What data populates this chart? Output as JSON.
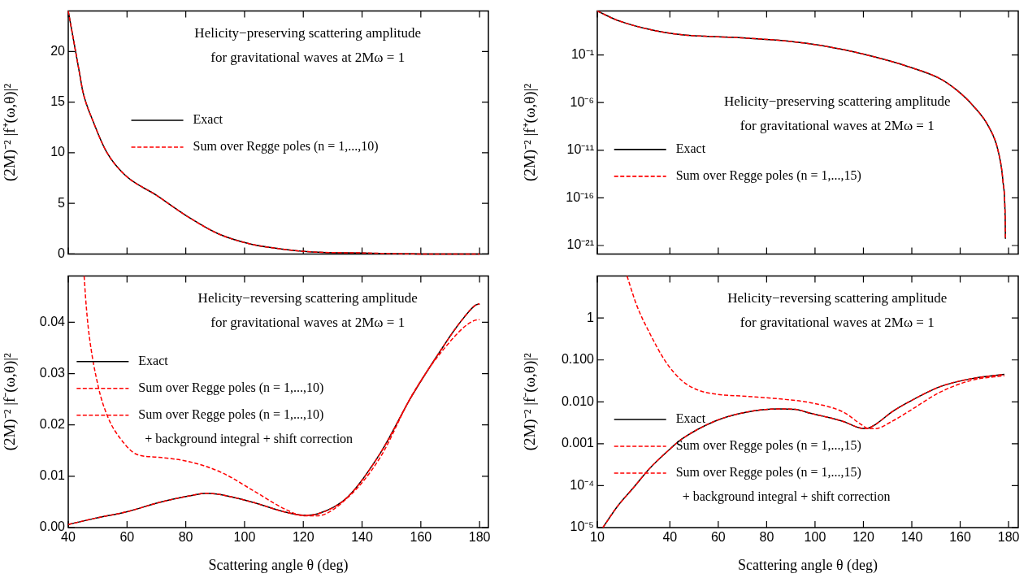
{
  "chart_data": [
    {
      "type": "line",
      "title": "Helicity−preserving scattering amplitude",
      "subtitle": "for gravitational waves at 2Mω = 1",
      "ylabel": "(2M)⁻² |f⁺(ω,θ)|²",
      "xlim": [
        40,
        183
      ],
      "xticks": [
        40,
        60,
        80,
        100,
        120,
        140,
        160,
        180
      ],
      "ylim": [
        0,
        24
      ],
      "yticks": [
        0,
        5,
        10,
        15,
        20
      ],
      "tick_labels": "y",
      "legend": "center",
      "x": [
        40,
        42,
        44,
        45,
        48.6,
        53,
        59.3,
        70,
        80.6,
        91,
        101.8,
        112.3,
        123,
        140,
        160,
        180
      ],
      "series": [
        {
          "name": "Exact",
          "color": "#000000",
          "line_style": "solid",
          "values": [
            24,
            20.8,
            17.6,
            16,
            13,
            10.1,
            7.8,
            5.8,
            3.7,
            2,
            1,
            0.5,
            0.2,
            0.1,
            0,
            0
          ]
        },
        {
          "name": "Sum over Regge poles (n = 1,...,10)",
          "color": "#ff0000",
          "line_style": "dashed",
          "values": [
            24,
            20.8,
            17.6,
            16,
            13,
            10.1,
            7.8,
            5.8,
            3.7,
            2,
            1,
            0.5,
            0.2,
            0.1,
            0,
            0
          ]
        }
      ]
    },
    {
      "type": "line",
      "title": "Helicity−preserving scattering amplitude",
      "subtitle": "for gravitational waves at 2Mω = 1",
      "ylabel": "(2M)⁻² |f⁺(ω,θ)|²",
      "xlim": [
        10,
        184
      ],
      "xticks": [
        10,
        40,
        60,
        80,
        100,
        120,
        140,
        160,
        180
      ],
      "ylim": [
        1.3e-22,
        4000
      ],
      "yticks": [
        {
          "value": 0.1,
          "label": "10⁻¹"
        },
        {
          "value": 1e-06,
          "label": "10⁻⁶"
        },
        {
          "value": 1e-11,
          "label": "10⁻¹¹"
        },
        {
          "value": 1e-16,
          "label": "10⁻¹⁶"
        },
        {
          "value": 1e-21,
          "label": "10⁻²¹"
        }
      ],
      "log": "y",
      "tick_labels": "y",
      "legend": "bottom left",
      "x": [
        10,
        18.3,
        31.7,
        45,
        58.3,
        71.7,
        85,
        98.3,
        111.7,
        125,
        138.3,
        151.7,
        158.3,
        165,
        171.7,
        175.7,
        177.7,
        178.6,
        178.7
      ],
      "series": [
        {
          "name": "Exact",
          "color": "#000000",
          "line_style": "solid",
          "values": [
            4000,
            430,
            46,
            13,
            8.3,
            5.8,
            3.4,
            1.4,
            0.36,
            0.058,
            0.0062,
            0.00032,
            2.3e-05,
            5.8e-07,
            3.2e-09,
            8e-12,
            5e-15,
            6e-19,
            5e-21
          ]
        },
        {
          "name": "Sum over Regge poles (n = 1,...,15)",
          "color": "#ff0000",
          "line_style": "dashed",
          "values": [
            4000,
            430,
            46,
            13,
            8.3,
            5.8,
            3.4,
            1.4,
            0.36,
            0.058,
            0.0062,
            0.00032,
            2.3e-05,
            5.8e-07,
            3.2e-09,
            8e-12,
            5e-15,
            6e-19,
            5e-21
          ]
        }
      ]
    },
    {
      "type": "line",
      "title": "Helicity−reversing scattering amplitude",
      "subtitle": "for gravitational waves at 2Mω = 1",
      "xlabel": "Scattering angle θ (deg)",
      "ylabel": "(2M)⁻² |f⁻(ω,θ)|²",
      "xlim": [
        40,
        183
      ],
      "xticks": [
        40,
        60,
        80,
        100,
        120,
        140,
        160,
        180
      ],
      "ylim": [
        0,
        0.049
      ],
      "yticks": [
        {
          "value": 0,
          "label": "0.00"
        },
        {
          "value": 0.01,
          "label": "0.01"
        },
        {
          "value": 0.02,
          "label": "0.02"
        },
        {
          "value": 0.03,
          "label": "0.03"
        },
        {
          "value": 0.04,
          "label": "0.04"
        }
      ],
      "legend": "left",
      "series": [
        {
          "name": "Exact",
          "color": "#000000",
          "line_style": "solid",
          "x": [
            40,
            49,
            60,
            71,
            81.5,
            87,
            92,
            103,
            114,
            120,
            125,
            135,
            146,
            157,
            168,
            173,
            178.5,
            180
          ],
          "values": [
            0.0006,
            0.0018,
            0.0031,
            0.0049,
            0.0062,
            0.0067,
            0.0064,
            0.0049,
            0.003,
            0.0024,
            0.0027,
            0.0059,
            0.0143,
            0.0257,
            0.0356,
            0.0397,
            0.0433,
            0.0436
          ]
        },
        {
          "name": "Sum over Regge poles (n = 1,...,10)",
          "color": "#ff0000",
          "line_style": "dashed",
          "x": [
            45.4,
            46,
            47,
            50.2,
            53.5,
            57.8,
            63.2,
            70.7,
            81.5,
            92.3,
            103,
            113.8,
            120.3,
            124.6,
            135.4,
            146.2,
            156.9,
            167.7,
            178.5,
            180
          ],
          "values": [
            0.049,
            0.044,
            0.038,
            0.0275,
            0.0215,
            0.0173,
            0.0143,
            0.0137,
            0.0128,
            0.0107,
            0.0072,
            0.0036,
            0.0023,
            0.0023,
            0.006,
            0.0137,
            0.0257,
            0.0347,
            0.0404,
            0.0405
          ]
        },
        {
          "name": "Sum over Regge poles (n = 1,...,10)\n+ background integral + shift correction",
          "color": "#ff0000",
          "line_style": "dashed",
          "x": [
            40,
            49,
            60,
            71,
            81.5,
            87,
            92,
            103,
            114,
            120,
            125,
            135,
            146,
            157,
            168,
            173,
            178.5,
            180
          ],
          "values": [
            0.0006,
            0.0018,
            0.0031,
            0.0049,
            0.0062,
            0.0067,
            0.0064,
            0.0049,
            0.003,
            0.0024,
            0.0027,
            0.0059,
            0.0143,
            0.0257,
            0.0356,
            0.0397,
            0.0433,
            0.0436
          ]
        }
      ]
    },
    {
      "type": "line",
      "title": "Helicity−reversing scattering amplitude",
      "subtitle": "for gravitational waves at 2Mω = 1",
      "xlabel": "Scattering angle θ (deg)",
      "ylabel": "(2M)⁻² |f⁻(ω,θ)|²",
      "xlim": [
        10,
        184
      ],
      "xticks": [
        10,
        40,
        60,
        80,
        100,
        120,
        140,
        160,
        180
      ],
      "ylim": [
        1e-05,
        10
      ],
      "yticks": [
        {
          "value": 1e-05,
          "label": "10⁻⁵"
        },
        {
          "value": 0.0001,
          "label": "10⁻⁴"
        },
        {
          "value": 0.001,
          "label": "0.001"
        },
        {
          "value": 0.01,
          "label": "0.010"
        },
        {
          "value": 0.1,
          "label": "0.100"
        },
        1
      ],
      "log": "y",
      "legend": "bottom left",
      "series": [
        {
          "name": "Exact",
          "color": "#000000",
          "line_style": "solid",
          "x": [
            12.3,
            18.3,
            25,
            31.7,
            39.7,
            45,
            58.3,
            71.7,
            85,
            91.7,
            98.3,
            111.7,
            118.3,
            121,
            125,
            131.7,
            138.3,
            151.7,
            165,
            178.3
          ],
          "values": [
            1e-05,
            3.2e-05,
            9e-05,
            0.00026,
            0.00072,
            0.0013,
            0.0034,
            0.0057,
            0.0068,
            0.0066,
            0.0053,
            0.0034,
            0.0024,
            0.0023,
            0.0029,
            0.0057,
            0.0096,
            0.023,
            0.036,
            0.045
          ]
        },
        {
          "name": "Sum over Regge poles (n = 1,...,15)",
          "color": "#ff0000",
          "line_style": "dashed",
          "x": [
            22.3,
            26.3,
            31.7,
            38.3,
            45,
            51.7,
            58.3,
            71.7,
            85,
            98.3,
            111.7,
            118.3,
            122.3,
            125,
            131.7,
            138.3,
            151.7,
            165,
            178.3
          ],
          "values": [
            10,
            2,
            0.43,
            0.09,
            0.032,
            0.019,
            0.0155,
            0.0135,
            0.0118,
            0.0095,
            0.0057,
            0.0031,
            0.0023,
            0.0023,
            0.0034,
            0.0057,
            0.017,
            0.033,
            0.042
          ]
        },
        {
          "name": "Sum over Regge poles (n = 1,...,15)\n+ background integral + shift correction",
          "color": "#ff0000",
          "line_style": "dashed",
          "x": [
            12.3,
            18.3,
            25,
            31.7,
            39.7,
            45,
            58.3,
            71.7,
            85,
            91.7,
            98.3,
            111.7,
            118.3,
            121,
            125,
            131.7,
            138.3,
            151.7,
            165,
            178.3
          ],
          "values": [
            1e-05,
            3.2e-05,
            9e-05,
            0.00026,
            0.00072,
            0.0013,
            0.0034,
            0.0057,
            0.0068,
            0.0066,
            0.0053,
            0.0034,
            0.0024,
            0.0023,
            0.0029,
            0.0057,
            0.0096,
            0.023,
            0.036,
            0.045
          ]
        }
      ]
    }
  ]
}
